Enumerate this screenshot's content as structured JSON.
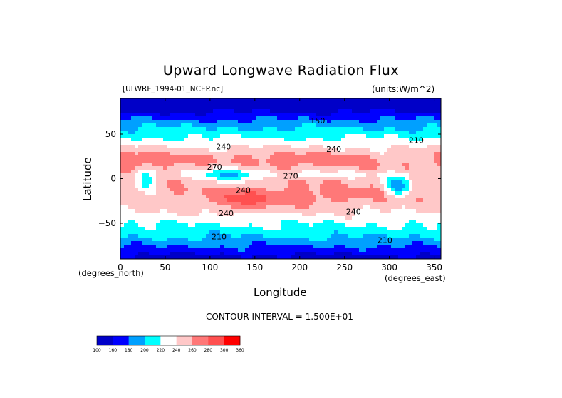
{
  "chart_data": {
    "type": "heatmap",
    "title": "Upward Longwave Radiation Flux",
    "subtitle_left": "[ULWRF_1994-01_NCEP.nc]",
    "subtitle_right": "(units:W/m^2)",
    "xlabel": "Longitude",
    "ylabel": "Latitude",
    "x_units": "(degrees_north)",
    "x_units_east": "(degrees_east)",
    "contour_note": "CONTOUR INTERVAL = 1.500E+01",
    "xlim": [
      0,
      357.5
    ],
    "ylim": [
      -90,
      90
    ],
    "x_ticks": [
      0,
      50,
      100,
      150,
      200,
      250,
      300,
      350
    ],
    "y_ticks": [
      50,
      0,
      -50
    ],
    "colorbar_levels": [
      100,
      160,
      180,
      200,
      220,
      240,
      260,
      280,
      300,
      360
    ],
    "colorbar_colors": [
      "#0000c8",
      "#0000ff",
      "#00a0ff",
      "#00ffff",
      "#ffffff",
      "#ffc8c8",
      "#ff7878",
      "#ff5050",
      "#ff0000"
    ],
    "contour_labels": [
      {
        "text": "150",
        "lon": 220,
        "lat": 62
      },
      {
        "text": "210",
        "lon": 330,
        "lat": 40
      },
      {
        "text": "240",
        "lon": 115,
        "lat": 33
      },
      {
        "text": "240",
        "lon": 238,
        "lat": 30
      },
      {
        "text": "270",
        "lon": 105,
        "lat": 10
      },
      {
        "text": "270",
        "lon": 190,
        "lat": 0
      },
      {
        "text": "240",
        "lon": 137,
        "lat": -16
      },
      {
        "text": "240",
        "lon": 260,
        "lat": -40
      },
      {
        "text": "240",
        "lon": 118,
        "lat": -42
      },
      {
        "text": "210",
        "lon": 110,
        "lat": -68
      },
      {
        "text": "210",
        "lon": 295,
        "lat": -72
      }
    ]
  }
}
